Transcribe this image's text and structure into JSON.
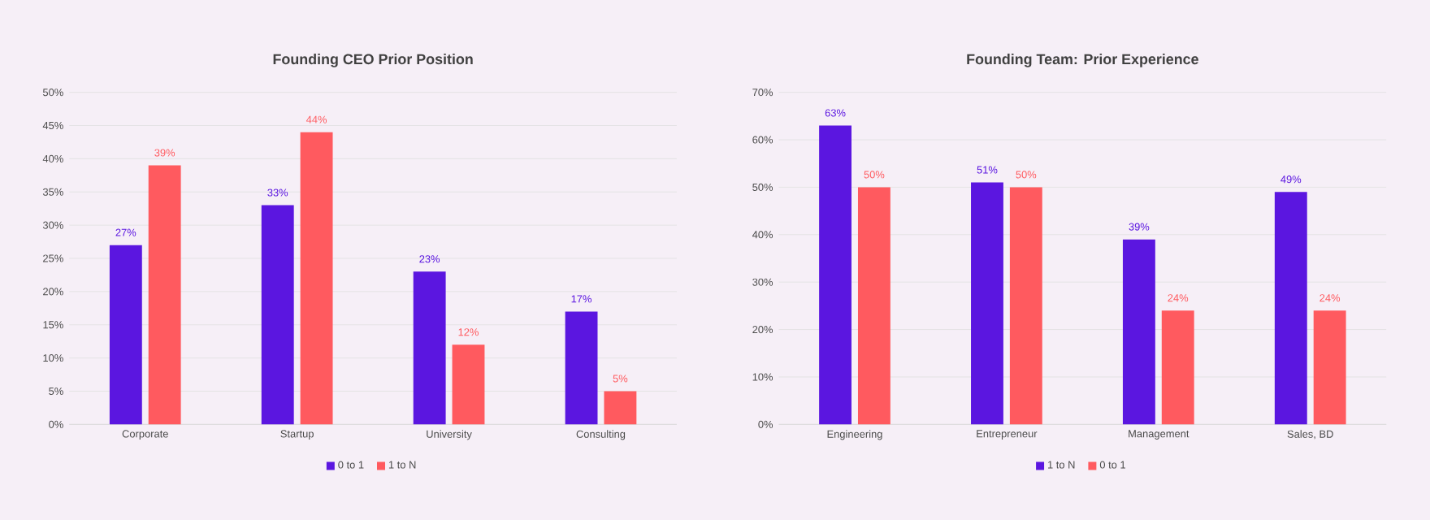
{
  "chart_data": [
    {
      "type": "bar",
      "title": "Founding CEO Prior Position",
      "categories": [
        "Corporate",
        "Startup",
        "University",
        "Consulting"
      ],
      "series": [
        {
          "name": "0 to 1",
          "color": "#5b16e0",
          "values": [
            27,
            33,
            23,
            17
          ],
          "value_labels": [
            "27%",
            "33%",
            "23%",
            "17%"
          ]
        },
        {
          "name": "1 to N",
          "color": "#ff5a5f",
          "values": [
            39,
            44,
            12,
            5
          ],
          "value_labels": [
            "39%",
            "44%",
            "12%",
            "5%"
          ]
        }
      ],
      "ylim": [
        0,
        50
      ],
      "yticks": [
        {
          "value": 0,
          "label": "0%"
        },
        {
          "value": 5,
          "label": "5%"
        },
        {
          "value": 10,
          "label": "10%"
        },
        {
          "value": 15,
          "label": "15%"
        },
        {
          "value": 20,
          "label": "20%"
        },
        {
          "value": 25,
          "label": "25%"
        },
        {
          "value": 30,
          "label": "30%"
        },
        {
          "value": 35,
          "label": "35%"
        },
        {
          "value": 40,
          "label": "40%"
        },
        {
          "value": 45,
          "label": "45%"
        },
        {
          "value": 50,
          "label": "50%"
        }
      ],
      "grid": "y",
      "legend": "bottom"
    },
    {
      "type": "bar",
      "title": "Founding Team: Prior Experience",
      "categories": [
        "Engineering",
        "Entrepreneur",
        "Management",
        "Sales, BD"
      ],
      "series": [
        {
          "name": "1 to N",
          "color": "#5b16e0",
          "values": [
            63,
            51,
            39,
            49
          ],
          "value_labels": [
            "63%",
            "51%",
            "39%",
            "49%"
          ]
        },
        {
          "name": "0 to 1",
          "color": "#ff5a5f",
          "values": [
            50,
            50,
            24,
            24
          ],
          "value_labels": [
            "50%",
            "50%",
            "24%",
            "24%"
          ]
        }
      ],
      "ylim": [
        0,
        70
      ],
      "yticks": [
        {
          "value": 0,
          "label": "0%"
        },
        {
          "value": 10,
          "label": "10%"
        },
        {
          "value": 20,
          "label": "20%"
        },
        {
          "value": 30,
          "label": "30%"
        },
        {
          "value": 40,
          "label": "40%"
        },
        {
          "value": 50,
          "label": "50%"
        },
        {
          "value": 60,
          "label": "60%"
        },
        {
          "value": 70,
          "label": "70%"
        }
      ],
      "grid": "y",
      "legend": "bottom"
    }
  ]
}
